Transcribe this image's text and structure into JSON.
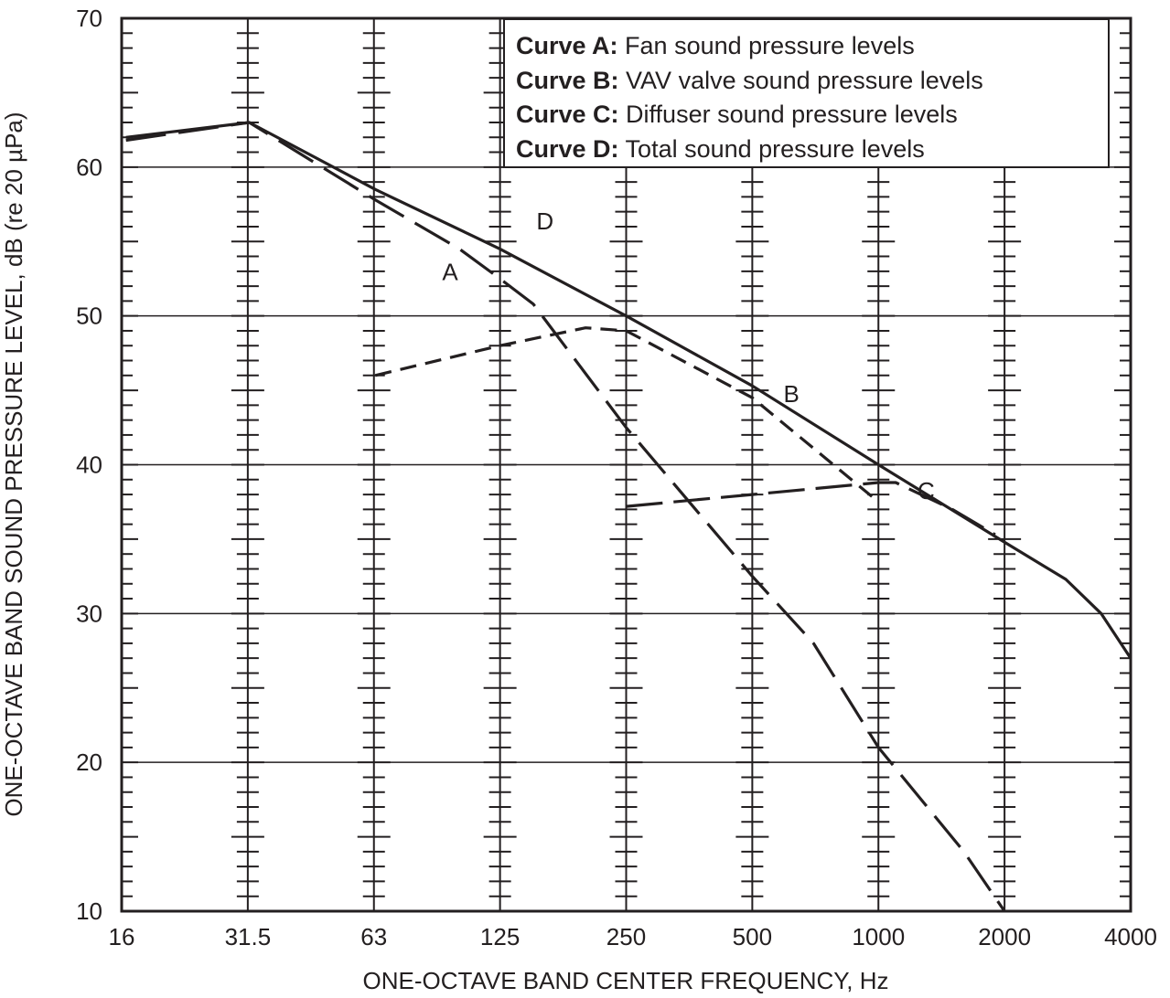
{
  "chart_data": {
    "type": "line",
    "xlabel": "ONE-OCTAVE BAND CENTER FREQUENCY, Hz",
    "ylabel": "ONE-OCTAVE BAND SOUND PRESSURE LEVEL, dB (re 20 µPa)",
    "x_scale": "log2",
    "x_ticks": [
      "16",
      "31.5",
      "63",
      "125",
      "250",
      "500",
      "1000",
      "2000",
      "4000"
    ],
    "y_ticks": [
      "10",
      "20",
      "30",
      "40",
      "50",
      "60",
      "70"
    ],
    "ylim": [
      10,
      70
    ],
    "xlim": [
      16,
      4000
    ],
    "grid": true,
    "legend_position": "top-right",
    "legend": [
      {
        "key": "Curve A:",
        "text": "Fan sound pressure levels"
      },
      {
        "key": "Curve B:",
        "text": "VAV valve sound pressure levels"
      },
      {
        "key": "Curve C:",
        "text": "Diffuser sound pressure levels"
      },
      {
        "key": "Curve D:",
        "text": "Total sound pressure levels"
      }
    ],
    "series": [
      {
        "name": "D",
        "style": "solid",
        "label_at": [
          160,
          55.8
        ],
        "points": [
          [
            16,
            62
          ],
          [
            31.5,
            63
          ],
          [
            63,
            58.5
          ],
          [
            125,
            54.5
          ],
          [
            250,
            50
          ],
          [
            500,
            45.3
          ],
          [
            1000,
            40
          ],
          [
            2000,
            34.8
          ],
          [
            2800,
            32.3
          ],
          [
            3400,
            30
          ],
          [
            4000,
            27
          ]
        ]
      },
      {
        "name": "A",
        "style": "long-dash",
        "label_at": [
          95,
          52.4
        ],
        "points": [
          [
            16,
            61.8
          ],
          [
            31.5,
            63
          ],
          [
            63,
            57.8
          ],
          [
            100,
            54.5
          ],
          [
            125,
            52.5
          ],
          [
            150,
            50.8
          ],
          [
            250,
            42.5
          ],
          [
            500,
            32.5
          ],
          [
            700,
            28
          ],
          [
            1000,
            21
          ],
          [
            1600,
            14
          ],
          [
            2000,
            10
          ]
        ]
      },
      {
        "name": "B",
        "style": "short-dash",
        "label_at": [
          620,
          44.2
        ],
        "points": [
          [
            63,
            46
          ],
          [
            125,
            48
          ],
          [
            200,
            49.2
          ],
          [
            250,
            49
          ],
          [
            500,
            44.5
          ],
          [
            1000,
            37.5
          ]
        ]
      },
      {
        "name": "C",
        "style": "medium-dash",
        "label_at": [
          1300,
          37.7
        ],
        "points": [
          [
            250,
            37.2
          ],
          [
            500,
            38
          ],
          [
            1000,
            38.8
          ],
          [
            1100,
            38.8
          ],
          [
            1500,
            37
          ],
          [
            1900,
            35.3
          ]
        ]
      }
    ]
  }
}
